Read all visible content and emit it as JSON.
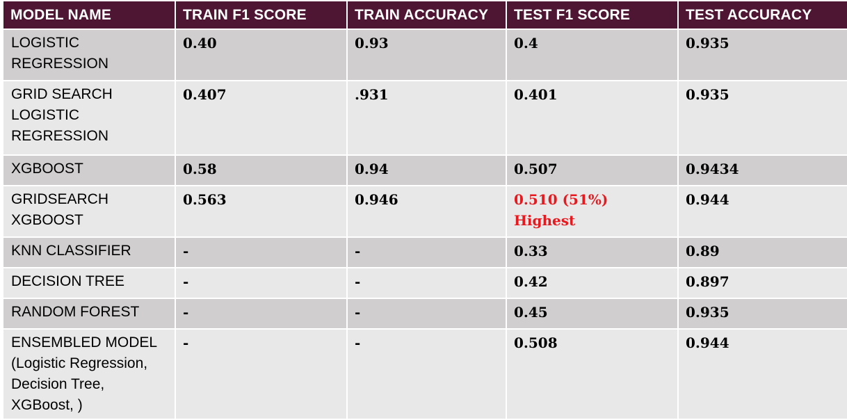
{
  "table": {
    "headers": [
      "MODEL NAME",
      "TRAIN F1 SCORE",
      "TRAIN ACCURACY",
      "TEST F1 SCORE",
      "TEST ACCURACY"
    ],
    "rows": [
      {
        "model_lines": [
          "LOGISTIC",
          "REGRESSION"
        ],
        "train_f1": "0.40",
        "train_accuracy": "0.93",
        "test_f1": "0.4",
        "test_accuracy": "0.935"
      },
      {
        "model_lines": [
          "GRID SEARCH",
          "LOGISTIC",
          "REGRESSION"
        ],
        "train_f1": "0.407",
        "train_accuracy": ".931",
        "test_f1": "0.401",
        "test_accuracy": "0.935"
      },
      {
        "model_lines": [
          "XGBOOST"
        ],
        "train_f1": "0.58",
        "train_accuracy": "0.94",
        "test_f1": "0.507",
        "test_accuracy": "0.9434"
      },
      {
        "model_lines": [
          "GRIDSEARCH",
          "XGBOOST"
        ],
        "train_f1": "0.563",
        "train_accuracy": "0.946",
        "test_f1": "0.510 (51%) Highest",
        "test_accuracy": "0.944"
      },
      {
        "model_lines": [
          "KNN CLASSIFIER"
        ],
        "train_f1": "-",
        "train_accuracy": "-",
        "test_f1": "0.33",
        "test_accuracy": "0.89"
      },
      {
        "model_lines": [
          "DECISION TREE"
        ],
        "train_f1": "-",
        "train_accuracy": "-",
        "test_f1": "0.42",
        "test_accuracy": "0.897"
      },
      {
        "model_lines": [
          "RANDOM FOREST"
        ],
        "train_f1": "-",
        "train_accuracy": "-",
        "test_f1": "0.45",
        "test_accuracy": "0.935"
      },
      {
        "model_lines": [
          "ENSEMBLED MODEL",
          "(Logistic Regression,",
          "Decision Tree,",
          "XGBoost, )"
        ],
        "train_f1": "-",
        "train_accuracy": "-",
        "test_f1": "0.508",
        "test_accuracy": "0.944"
      }
    ]
  },
  "colors": {
    "header_bg": "#4f1633",
    "row_dark": "#d0cecf",
    "row_light": "#e9e8e9",
    "highlight": "#e8191e"
  }
}
